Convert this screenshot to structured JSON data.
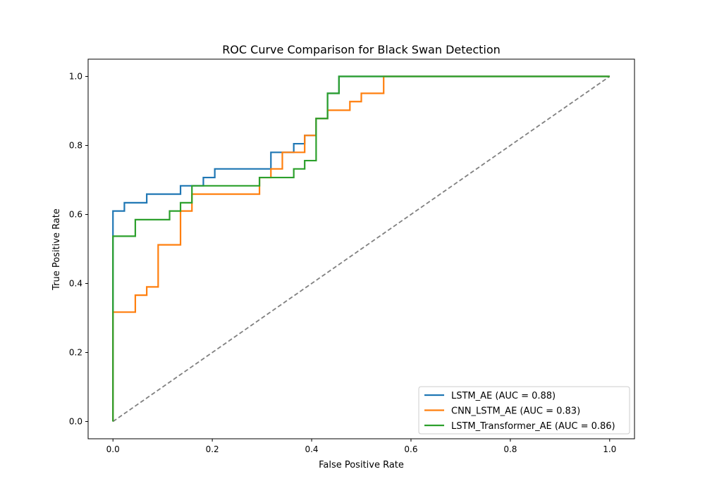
{
  "chart_data": {
    "type": "line",
    "title": "ROC Curve Comparison for Black Swan Detection",
    "xlabel": "False Positive Rate",
    "ylabel": "True Positive Rate",
    "xlim": [
      -0.05,
      1.05
    ],
    "ylim": [
      -0.05,
      1.05
    ],
    "xticks": [
      0.0,
      0.2,
      0.4,
      0.6,
      0.8,
      1.0
    ],
    "yticks": [
      0.0,
      0.2,
      0.4,
      0.6,
      0.8,
      1.0
    ],
    "tick_labels": [
      "0.0",
      "0.2",
      "0.4",
      "0.6",
      "0.8",
      "1.0"
    ],
    "legend_position": "lower-right",
    "series": [
      {
        "name": "LSTM_AE (AUC = 0.88)",
        "color": "#1f77b4",
        "x": [
          0,
          0,
          0.023,
          0.023,
          0.068,
          0.068,
          0.136,
          0.136,
          0.182,
          0.182,
          0.205,
          0.205,
          0.318,
          0.318,
          0.364,
          0.364,
          0.386,
          0.386,
          0.409,
          0.409,
          0.432,
          0.432,
          0.455,
          0.455,
          1.0
        ],
        "y": [
          0,
          0.61,
          0.61,
          0.634,
          0.634,
          0.659,
          0.659,
          0.683,
          0.683,
          0.707,
          0.707,
          0.732,
          0.732,
          0.78,
          0.78,
          0.805,
          0.805,
          0.829,
          0.829,
          0.878,
          0.878,
          0.951,
          0.951,
          1.0,
          1.0
        ]
      },
      {
        "name": "CNN_LSTM_AE (AUC = 0.83)",
        "color": "#ff7f0e",
        "x": [
          0,
          0,
          0.045,
          0.045,
          0.068,
          0.068,
          0.091,
          0.091,
          0.136,
          0.136,
          0.159,
          0.159,
          0.295,
          0.295,
          0.318,
          0.318,
          0.341,
          0.341,
          0.386,
          0.386,
          0.409,
          0.409,
          0.432,
          0.432,
          0.477,
          0.477,
          0.5,
          0.5,
          0.545,
          0.545,
          1.0
        ],
        "y": [
          0,
          0.317,
          0.317,
          0.366,
          0.366,
          0.39,
          0.39,
          0.512,
          0.512,
          0.61,
          0.61,
          0.659,
          0.659,
          0.707,
          0.707,
          0.732,
          0.732,
          0.78,
          0.78,
          0.829,
          0.829,
          0.878,
          0.878,
          0.902,
          0.902,
          0.927,
          0.927,
          0.951,
          0.951,
          1.0,
          1.0
        ]
      },
      {
        "name": "LSTM_Transformer_AE (AUC = 0.86)",
        "color": "#2ca02c",
        "x": [
          0,
          0,
          0.045,
          0.045,
          0.114,
          0.114,
          0.136,
          0.136,
          0.159,
          0.159,
          0.295,
          0.295,
          0.364,
          0.364,
          0.386,
          0.386,
          0.409,
          0.409,
          0.432,
          0.432,
          0.455,
          0.455,
          1.0
        ],
        "y": [
          0,
          0.537,
          0.537,
          0.585,
          0.585,
          0.61,
          0.61,
          0.634,
          0.634,
          0.683,
          0.683,
          0.707,
          0.707,
          0.732,
          0.732,
          0.756,
          0.756,
          0.878,
          0.878,
          0.951,
          0.951,
          1.0,
          1.0
        ]
      }
    ],
    "reference_line": {
      "x": [
        0,
        1
      ],
      "y": [
        0,
        1
      ],
      "color": "#808080",
      "style": "dashed"
    }
  }
}
